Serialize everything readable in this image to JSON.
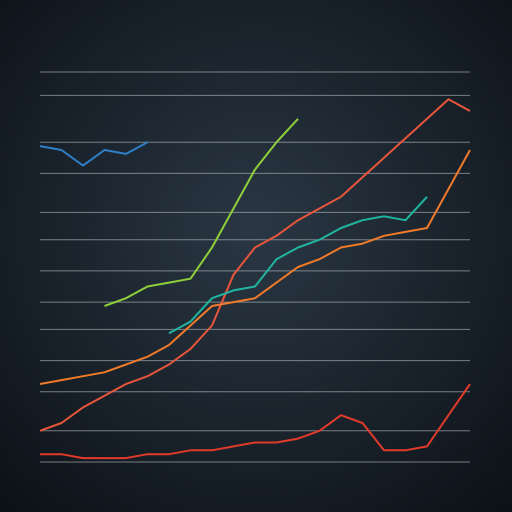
{
  "chart_data": {
    "type": "line",
    "x": [
      0,
      1,
      2,
      3,
      4,
      5,
      6,
      7,
      8,
      9,
      10,
      11,
      12,
      13,
      14,
      15,
      16,
      17,
      18,
      19,
      20
    ],
    "xlim": [
      0,
      20
    ],
    "ylim": [
      0,
      100
    ],
    "yticks": [
      0,
      8,
      18,
      26,
      34,
      41,
      49,
      57,
      64,
      74,
      82,
      94,
      100
    ],
    "grid": true,
    "series": [
      {
        "color": "#e8553a",
        "values": [
          8,
          10,
          14,
          17,
          20,
          22,
          25,
          29,
          35,
          48,
          55,
          58,
          62,
          65,
          68,
          73,
          78,
          83,
          88,
          93,
          90
        ]
      },
      {
        "color": "#8fcf3a",
        "values": [
          null,
          null,
          null,
          40,
          42,
          45,
          46,
          47,
          55,
          65,
          75,
          82,
          88,
          null,
          null,
          null,
          null,
          null,
          null,
          null,
          null
        ]
      },
      {
        "color": "#2f7fc8",
        "values": [
          81,
          80,
          76,
          80,
          79,
          82,
          null,
          null,
          null,
          null,
          null,
          null,
          null,
          null,
          null,
          null,
          null,
          null,
          null,
          null,
          null
        ]
      },
      {
        "color": "#f07a2a",
        "values": [
          20,
          21,
          22,
          23,
          25,
          27,
          30,
          35,
          40,
          41,
          42,
          46,
          50,
          52,
          55,
          56,
          58,
          59,
          60,
          70,
          80
        ]
      },
      {
        "color": "#1fb5a0",
        "values": [
          null,
          null,
          null,
          null,
          null,
          null,
          33,
          36,
          42,
          44,
          45,
          52,
          55,
          57,
          60,
          62,
          63,
          62,
          68,
          null,
          null
        ]
      },
      {
        "color": "#e23a2a",
        "values": [
          2,
          2,
          1,
          1,
          1,
          2,
          2,
          3,
          3,
          4,
          5,
          5,
          6,
          8,
          12,
          10,
          3,
          3,
          4,
          12,
          20
        ]
      }
    ]
  }
}
